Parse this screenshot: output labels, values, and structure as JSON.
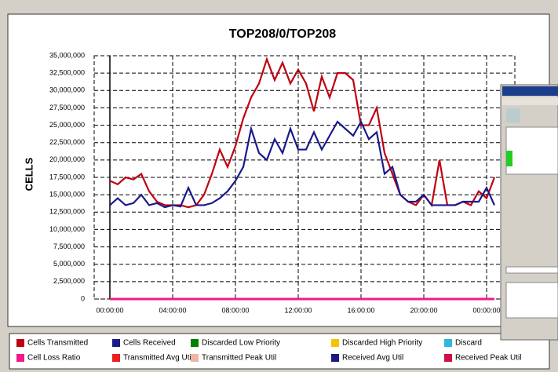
{
  "chart_data": {
    "type": "line",
    "title": "TOP208/0/TOP208",
    "y_label": "CELLS",
    "x": [
      0,
      0.5,
      1,
      1.5,
      2,
      2.5,
      3,
      3.5,
      4,
      4.5,
      5,
      5.5,
      6,
      6.5,
      7,
      7.5,
      8,
      8.5,
      9,
      9.5,
      10,
      10.5,
      11,
      11.5,
      12,
      12.5,
      13,
      13.5,
      14,
      14.5,
      15,
      15.5,
      16,
      16.5,
      17,
      17.5,
      18,
      18.5,
      19,
      19.5,
      20,
      20.5,
      21,
      21.5,
      22,
      22.5,
      23,
      23.5,
      24,
      24.5
    ],
    "xlim": [
      -1,
      25.8
    ],
    "xticks": [
      {
        "value": 0,
        "label": "00:00:00"
      },
      {
        "value": 4,
        "label": "04:00:00"
      },
      {
        "value": 8,
        "label": "08:00:00"
      },
      {
        "value": 12,
        "label": "12:00:00"
      },
      {
        "value": 16,
        "label": "16:00:00"
      },
      {
        "value": 20,
        "label": "20:00:00"
      },
      {
        "value": 24,
        "label": "00:00:00"
      }
    ],
    "ylim": [
      0,
      35000000
    ],
    "yticks": [
      0,
      {
        "value": 2500000,
        "label": "2,500,000"
      },
      {
        "value": 5000000,
        "label": "5,000,000"
      },
      {
        "value": 7500000,
        "label": "7,500,000"
      },
      {
        "value": 10000000,
        "label": "10,000,000"
      },
      {
        "value": 12500000,
        "label": "12,500,000"
      },
      {
        "value": 15000000,
        "label": "15,000,000"
      },
      {
        "value": 17500000,
        "label": "17,500,000"
      },
      {
        "value": 20000000,
        "label": "20,000,000"
      },
      {
        "value": 22500000,
        "label": "22,500,000"
      },
      {
        "value": 25000000,
        "label": "25,000,000"
      },
      {
        "value": 27500000,
        "label": "27,500,000"
      },
      {
        "value": 30000000,
        "label": "30,000,000"
      },
      {
        "value": 32500000,
        "label": "32,500,000"
      },
      {
        "value": 35000000,
        "label": "35,000,000"
      }
    ],
    "grid": true,
    "series": [
      {
        "name": "Cells Transmitted",
        "color": "#c00010",
        "values": [
          17000000,
          16500000,
          17500000,
          17200000,
          18000000,
          15500000,
          14000000,
          13500000,
          13500000,
          13500000,
          13200000,
          13500000,
          15000000,
          18000000,
          21500000,
          19000000,
          22000000,
          26000000,
          29000000,
          31000000,
          34500000,
          31500000,
          34000000,
          31000000,
          33000000,
          31000000,
          27000000,
          32000000,
          29000000,
          32500000,
          32500000,
          31500000,
          25000000,
          25000000,
          27500000,
          21000000,
          18000000,
          15000000,
          14000000,
          13500000,
          15000000,
          13500000,
          20000000,
          13500000,
          13500000,
          14000000,
          13500000,
          15500000,
          14500000,
          17500000
        ]
      },
      {
        "name": "Cells Received",
        "color": "#1a1a8c",
        "values": [
          13500000,
          14500000,
          13500000,
          13800000,
          15000000,
          13500000,
          13800000,
          13200000,
          13500000,
          13300000,
          16000000,
          13500000,
          13500000,
          13800000,
          14500000,
          15500000,
          17000000,
          19000000,
          24500000,
          21000000,
          20000000,
          23000000,
          21000000,
          24500000,
          21500000,
          21500000,
          24000000,
          21500000,
          23500000,
          25500000,
          24500000,
          23500000,
          25500000,
          23000000,
          24000000,
          18000000,
          19000000,
          15000000,
          14000000,
          14000000,
          15000000,
          13500000,
          13500000,
          13500000,
          13500000,
          14000000,
          14000000,
          14000000,
          16000000,
          13500000
        ]
      },
      {
        "name": "Discarded Low Priority",
        "color": "#008000"
      },
      {
        "name": "Discarded High Priority",
        "color": "#f5c400"
      },
      {
        "name": "Discard",
        "color": "#33b5dd"
      },
      {
        "name": "Cell Loss Ratio",
        "color": "#ee1b8c",
        "values": [
          0,
          0,
          0,
          0,
          0,
          0,
          0,
          0,
          0,
          0,
          0,
          0,
          0,
          0,
          0,
          0,
          0,
          0,
          0,
          0,
          0,
          0,
          0,
          0,
          0,
          0,
          0,
          0,
          0,
          0,
          0,
          0,
          0,
          0,
          0,
          0,
          0,
          0,
          0,
          0,
          0,
          0,
          0,
          0,
          0,
          0,
          0,
          0,
          0,
          0
        ]
      },
      {
        "name": "Transmitted Avg Util",
        "color": "#e82020"
      },
      {
        "name": "Transmitted Peak Util",
        "color": "#f0b4a0"
      },
      {
        "name": "Received Avg Util",
        "color": "#1a1a80"
      },
      {
        "name": "Received Peak Util",
        "color": "#cc1144"
      }
    ]
  }
}
